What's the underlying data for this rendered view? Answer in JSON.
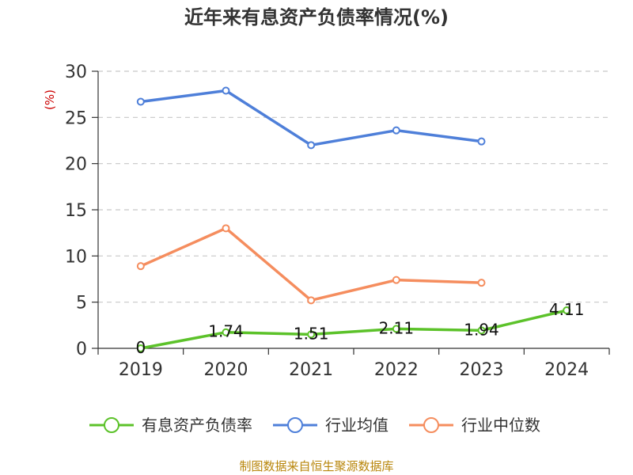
{
  "chart_data": {
    "type": "line",
    "title": "近年来有息资产负债率情况(%)",
    "ylabel": "(%)",
    "xlabel": "",
    "categories": [
      "2019",
      "2020",
      "2021",
      "2022",
      "2023",
      "2024"
    ],
    "ylim": [
      0,
      30
    ],
    "yticks": [
      0,
      5,
      10,
      15,
      20,
      25,
      30
    ],
    "grid": "horizontal-dashed",
    "legend_position": "bottom",
    "series": [
      {
        "name": "有息资产负债率",
        "color": "#5cc22a",
        "values": [
          0,
          1.74,
          1.51,
          2.11,
          1.94,
          4.11
        ],
        "labels": [
          "0",
          "1.74",
          "1.51",
          "2.11",
          "1.94",
          "4.11"
        ]
      },
      {
        "name": "行业均值",
        "color": "#4e7fd9",
        "values": [
          26.7,
          27.9,
          22.0,
          23.6,
          22.4,
          null
        ]
      },
      {
        "name": "行业中位数",
        "color": "#f58d5e",
        "values": [
          8.9,
          13.0,
          5.2,
          7.4,
          7.1,
          null
        ]
      }
    ]
  },
  "footer": {
    "source": "制图数据来自恒生聚源数据库"
  }
}
